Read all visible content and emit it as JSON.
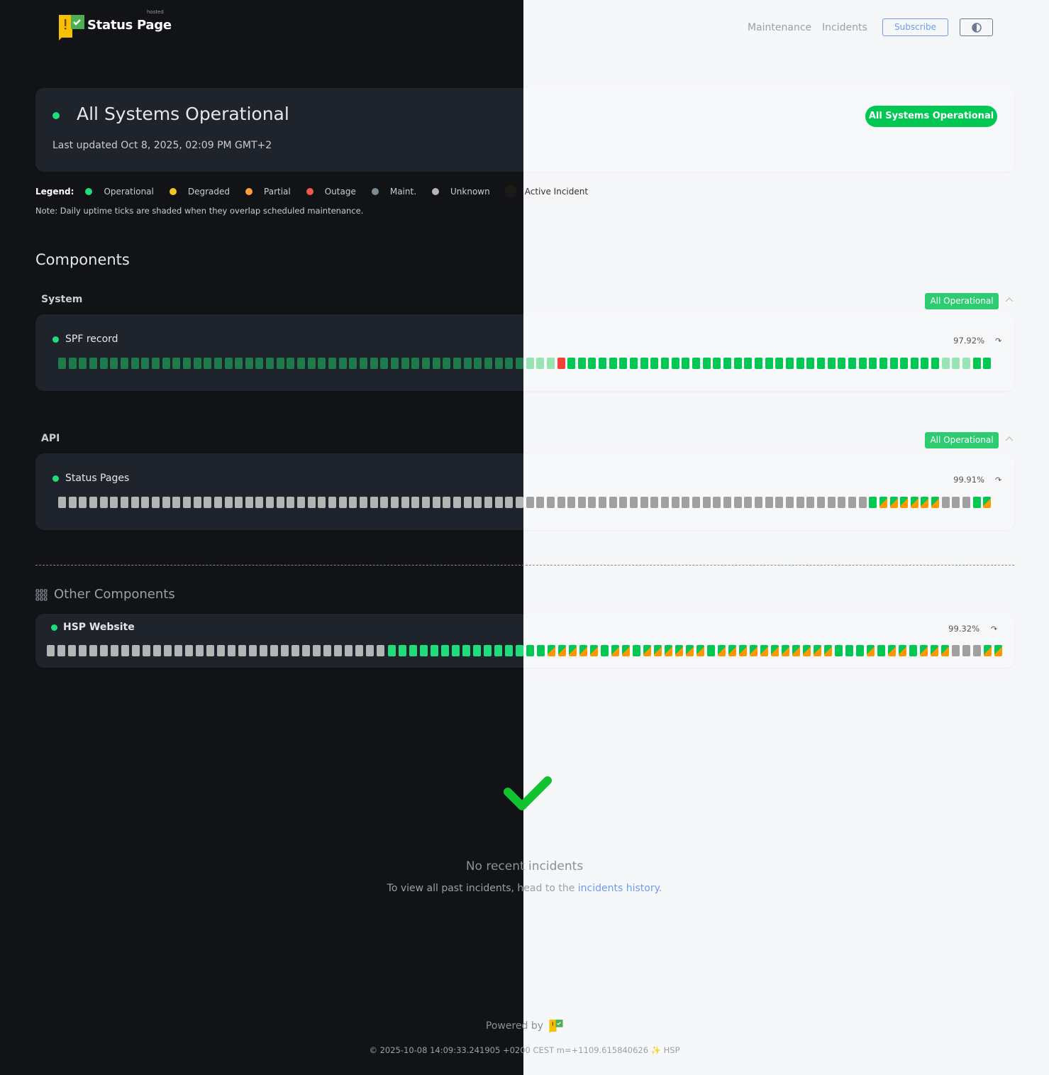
{
  "header": {
    "brand": "Status Page",
    "brand_tag": "hosted",
    "nav": [
      "Maintenance",
      "Incidents"
    ],
    "subscribe_label": "Subscribe",
    "theme_toggle_icon": "contrast-icon"
  },
  "hero": {
    "title": "All Systems Operational",
    "last_updated": "Last updated Oct 8, 2025, 02:09 PM GMT+2",
    "status_pill": "All Systems Operational"
  },
  "legend": {
    "label": "Legend:",
    "items": [
      {
        "label": "Operational",
        "color": "#20dc7a"
      },
      {
        "label": "Degraded",
        "color": "#f7c325"
      },
      {
        "label": "Partial",
        "color": "#ff9f3a"
      },
      {
        "label": "Outage",
        "color": "#f4574b"
      },
      {
        "label": "Maint.",
        "color": "#7b8a96"
      },
      {
        "label": "Unknown",
        "color": "#b4b4b4"
      },
      {
        "label": "Active Incident",
        "color": "#1c1a17"
      }
    ],
    "note": "Note: Daily uptime ticks are shaded when they overlap scheduled maintenance."
  },
  "components": {
    "heading": "Components",
    "groups": [
      {
        "name": "System",
        "badge": "All Operational",
        "items": [
          {
            "name": "SPF record",
            "uptime": "97.92%",
            "ticks": [
              [
                "shaded",
                48
              ],
              [
                "outage",
                1
              ],
              [
                "op",
                36
              ],
              [
                "shaded",
                3
              ],
              [
                "op",
                2
              ]
            ]
          }
        ]
      },
      {
        "name": "API",
        "badge": "All Operational",
        "items": [
          {
            "name": "Status Pages",
            "uptime": "99.91%",
            "ticks": [
              [
                "unknown",
                78
              ],
              [
                "op",
                1
              ],
              [
                "partial",
                6
              ],
              [
                "unknown",
                3
              ],
              [
                "op",
                1
              ],
              [
                "partial",
                1
              ]
            ]
          }
        ]
      }
    ]
  },
  "other": {
    "heading": "Other Components",
    "items": [
      {
        "name": "HSP Website",
        "uptime": "99.32%",
        "ticks": [
          [
            "unknown",
            32
          ],
          [
            "op",
            15
          ],
          [
            "partial",
            5
          ],
          [
            "op",
            1
          ],
          [
            "partial",
            2
          ],
          [
            "op",
            1
          ],
          [
            "partial",
            6
          ],
          [
            "op",
            1
          ],
          [
            "partial",
            11
          ],
          [
            "op",
            3
          ],
          [
            "partial",
            1
          ],
          [
            "op",
            1
          ],
          [
            "partial",
            2
          ],
          [
            "op",
            1
          ],
          [
            "partial",
            3
          ],
          [
            "unknown",
            3
          ],
          [
            "partial",
            2
          ]
        ]
      }
    ]
  },
  "incidents": {
    "title": "No recent incidents",
    "text": "To view all past incidents, head to the ",
    "link": "incidents history",
    "suffix": "."
  },
  "footer": {
    "powered_by": "Powered by",
    "copyright": "© 2025-10-08 14:09:33.241905 +0200 CEST m=+1109.615840626 ✨ HSP"
  }
}
